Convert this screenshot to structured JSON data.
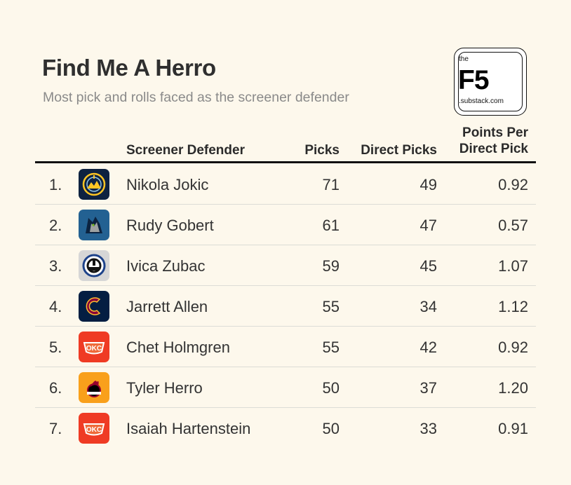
{
  "title": "Find Me A Herro",
  "subtitle": "Most pick and rolls faced as the screener defender",
  "logo": {
    "top": "the",
    "main": "F5",
    "bottom": ".substack.com"
  },
  "chart_data": {
    "type": "table",
    "columns": [
      "Screener Defender",
      "Picks",
      "Direct Picks",
      "Points Per Direct Pick"
    ],
    "header_labels": {
      "defender": "Screener Defender",
      "picks": "Picks",
      "direct": "Direct Picks",
      "ppdp_line1": "Points Per",
      "ppdp_line2": "Direct Pick"
    },
    "rows": [
      {
        "rank": "1.",
        "team_icon": "nuggets-logo-icon",
        "team_color": "#0e2240",
        "accent": "#fec524",
        "player": "Nikola Jokic",
        "picks": "71",
        "direct": "49",
        "ppdp": "0.92"
      },
      {
        "rank": "2.",
        "team_icon": "timberwolves-logo-icon",
        "team_color": "#236192",
        "accent": "#9ea2a2",
        "player": "Rudy Gobert",
        "picks": "61",
        "direct": "47",
        "ppdp": "0.57"
      },
      {
        "rank": "3.",
        "team_icon": "clippers-logo-icon",
        "team_color": "#d6d6d6",
        "accent": "#1d428a",
        "player": "Ivica Zubac",
        "picks": "59",
        "direct": "45",
        "ppdp": "1.07"
      },
      {
        "rank": "4.",
        "team_icon": "cavaliers-logo-icon",
        "team_color": "#041e42",
        "accent": "#860038",
        "player": "Jarrett Allen",
        "picks": "55",
        "direct": "34",
        "ppdp": "1.12"
      },
      {
        "rank": "5.",
        "team_icon": "thunder-logo-icon",
        "team_color": "#ef3b24",
        "accent": "#ffffff",
        "player": "Chet Holmgren",
        "picks": "55",
        "direct": "42",
        "ppdp": "0.92"
      },
      {
        "rank": "6.",
        "team_icon": "heat-logo-icon",
        "team_color": "#f9a01b",
        "accent": "#98002e",
        "player": "Tyler Herro",
        "picks": "50",
        "direct": "37",
        "ppdp": "1.20"
      },
      {
        "rank": "7.",
        "team_icon": "thunder-logo-icon",
        "team_color": "#ef3b24",
        "accent": "#ffffff",
        "player": "Isaiah Hartenstein",
        "picks": "50",
        "direct": "33",
        "ppdp": "0.91"
      }
    ]
  }
}
